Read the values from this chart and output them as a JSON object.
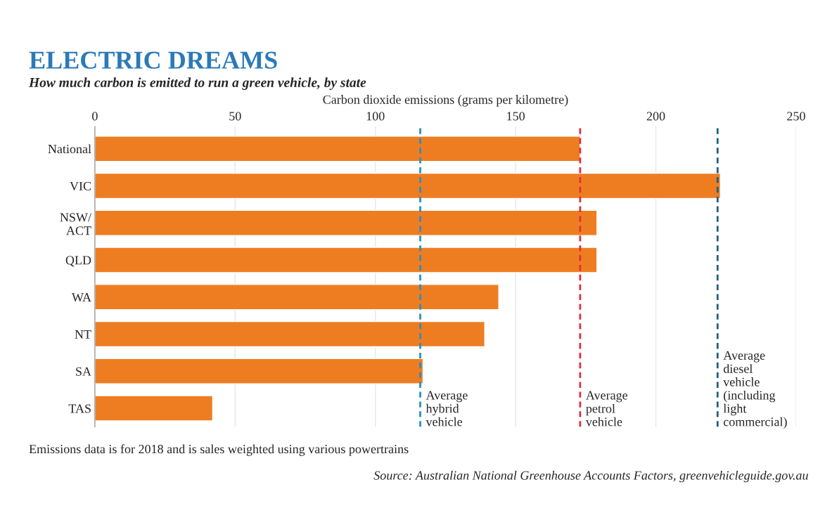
{
  "chart_data": {
    "type": "bar",
    "orientation": "horizontal",
    "title": "ELECTRIC DREAMS",
    "subtitle": "How much carbon is emitted to run a green vehicle, by state",
    "xlabel": "Carbon dioxide emissions (grams per kilometre)",
    "categories": [
      "National",
      "VIC",
      "NSW/\nACT",
      "QLD",
      "WA",
      "NT",
      "SA",
      "TAS"
    ],
    "values": [
      173,
      223,
      179,
      179,
      144,
      139,
      117,
      42
    ],
    "color": "#ee7d22",
    "xlim": [
      0,
      250
    ],
    "xticks": [
      0,
      50,
      100,
      150,
      200,
      250
    ],
    "grid": "x",
    "ref_lines": [
      {
        "axis": "x",
        "value": 116,
        "label": "Average\nhybrid\nvehicle",
        "color": "#2a8fc0",
        "line_style": "dashed"
      },
      {
        "axis": "x",
        "value": 173,
        "label": "Average\npetrol\nvehicle",
        "color": "#e0303a",
        "line_style": "dashed"
      },
      {
        "axis": "x",
        "value": 222,
        "label": "Average\ndiesel\nvehicle\n(including\nlight\ncommercial)",
        "color": "#1f5f80",
        "line_style": "dashed"
      }
    ],
    "annotations": [
      "Emissions data is for 2018 and is sales weighted using various powertrains",
      "Source: Australian National Greenhouse Accounts Factors, greenvehicleguide.gov.au"
    ]
  }
}
